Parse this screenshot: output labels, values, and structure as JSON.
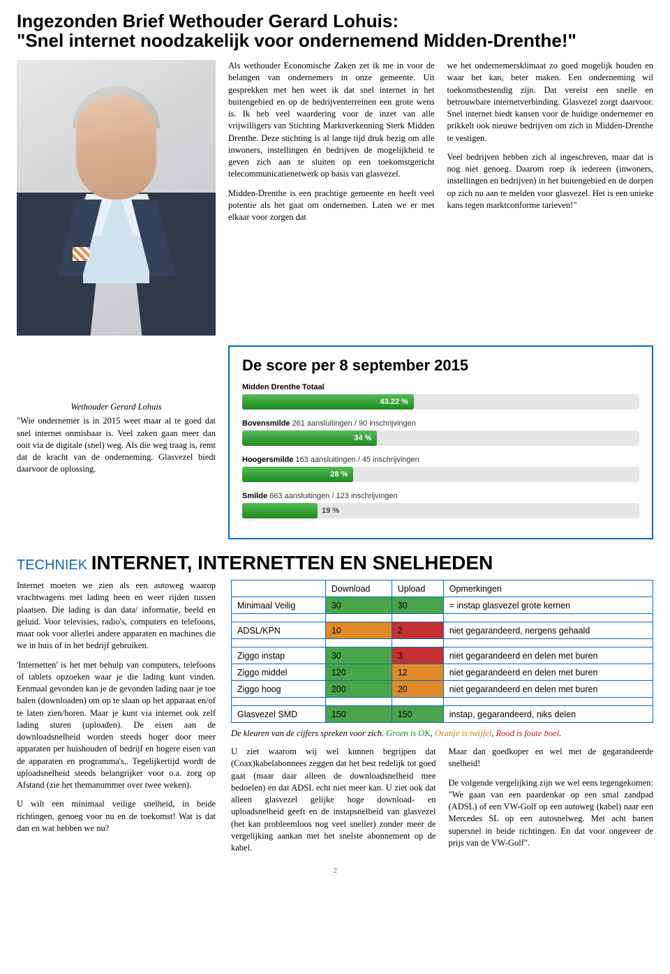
{
  "title": {
    "line1": "Ingezonden Brief Wethouder Gerard Lohuis:",
    "line2": "\"Snel internet noodzakelijk voor ondernemend Midden-Drenthe!\""
  },
  "article": {
    "col1": [
      "Als wethouder Economische Zaken zet ik me in voor de belangen van ondernemers in onze gemeente. Uit gesprekken met hen weet ik dat snel internet in het buitengebied en op de bedrijventerreinen een grote wens is. Ik heb veel waardering voor de inzet van alle vrijwilligers van Stichting Marktverkenning Sterk Midden Drenthe. Deze stichting is al lange tijd druk bezig om alle inwoners, instellingen én bedrijven de mogelijkheid te geven zich aan te sluiten op een toekomstgericht telecommunicatienetwerk op basis van glasvezel.",
      "Midden-Drenthe is een prachtige gemeente en heeft veel potentie als het gaat om ondernemen. Laten we er met elkaar voor zorgen dat"
    ],
    "col2": [
      "we het ondernemersklimaat zo goed mogelijk houden en waar het kan, beter maken. Een onderneming wil toekomstbestendig zijn. Dat vereist een snelle en betrouwbare internetverbinding. Glasvezel zorgt daarvoor. Snel internet biedt kansen voor de huidige ondernemer en prikkelt ook nieuwe bedrijven om zich in Midden-Drenthe te vestigen.",
      "Veel bedrijven hebben zich al ingeschreven, maar dat is nog niet genoeg. Daarom roep ik iedereen (inwoners, instellingen en bedrijven) in het buitengebied en de dorpen op zich nu aan te melden voor glasvezel. Het is een unieke kans tegen marktconforme tarieven!\""
    ]
  },
  "caption": {
    "name": "Wethouder Gerard Lohuis",
    "text": "\"Wie ondernemer is in 2015 weet maar al te goed dat snel internet onmisbaar is. Veel zaken gaan meer dan ooit via de digitale (snel) weg. Als die weg traag is, remt dat de kracht van de onderneming. Glasvezel biedt daarvoor de oplossing."
  },
  "score": {
    "title": "De score per 8 september 2015",
    "bar_bg": "#e6e6e6",
    "bars": [
      {
        "label_b": "Midden Drenthe Totaal",
        "label_after": "",
        "pct": 43.22,
        "color1": "#1d8a1f",
        "color2": "#55bb57"
      },
      {
        "label_b": "Bovensmilde",
        "label_after": " 261 aansluitingen / 90 inschrijvingen",
        "pct": 34,
        "color1": "#1d8a1f",
        "color2": "#55bb57"
      },
      {
        "label_b": "Hoogersmilde",
        "label_after": " 163 aansluitingen / 45 inschrijvingen",
        "pct": 28,
        "color1": "#1d8a1f",
        "color2": "#55bb57"
      },
      {
        "label_b": "Smilde",
        "label_after": " 663 aansluitingen / 123 inschrijvingen",
        "pct": 19,
        "color1": "#1d8a1f",
        "color2": "#55bb57"
      }
    ]
  },
  "section2": {
    "title_prefix": "TECHNIEK ",
    "title_main": "INTERNET, INTERNETTEN EN SNELHEDEN",
    "left_paras": [
      "Internet moeten we zien als een autoweg waarop vrachtwagens met lading heen en weer rijden tussen plaatsen. Die lading is dan data/ informatie, beeld en geluid. Voor televisies, radio's, computers en telefoons, maar ook voor allerlei andere apparaten en machines die we in huis of in het bedrijf gebruiken.",
      "'Internetten' is het met behulp van computers, telefoons of tablets opzoeken waar je die lading kunt vinden. Eenmaal gevonden kan je de gevonden lading naar je toe halen (downloaden) om op te slaan op het apparaat en/of te laten zien/horen. Maar je kunt via internet ook zelf lading sturen (uploaden). De eisen aan de downloadsnelheid worden steeds hoger door meer apparaten per huishouden of bedrijf en hogere eisen van de apparaten en programma's,. Tegelijkertijd wordt de uploadsnelheid steeds belangrijker voor o.a. zorg op Afstand (zie het themanummer over twee weken).",
      "U wilt een minimaal veilige snelheid, in beide richtingen, genoeg voor nu en de toekomst! Wat is dat dan en wat hebben we nu?"
    ],
    "table": {
      "headers": [
        "",
        "Download",
        "Upload",
        "Opmerkingen"
      ],
      "colors": {
        "green": "#4aa54a",
        "orange": "#e08a2a",
        "red": "#c73030"
      },
      "rows": [
        {
          "label": "Minimaal Veilig",
          "dl": "30",
          "dl_c": "green",
          "ul": "30",
          "ul_c": "green",
          "op": "= instap glasvezel grote kernen"
        },
        {
          "spacer": true
        },
        {
          "label": "ADSL/KPN",
          "dl": "10",
          "dl_c": "orange",
          "ul": "2",
          "ul_c": "red",
          "op": "niet gegarandeerd, nergens gehaald"
        },
        {
          "spacer": true
        },
        {
          "label": "Ziggo instap",
          "dl": "30",
          "dl_c": "green",
          "ul": "3",
          "ul_c": "red",
          "op": "niet gegarandeerd en delen met buren"
        },
        {
          "label": "Ziggo middel",
          "dl": "120",
          "dl_c": "green",
          "ul": "12",
          "ul_c": "orange",
          "op": "niet gegarandeerd en delen met buren"
        },
        {
          "label": "Ziggo hoog",
          "dl": "200",
          "dl_c": "green",
          "ul": "20",
          "ul_c": "orange",
          "op": "niet gegarandeerd en delen met buren"
        },
        {
          "spacer": true
        },
        {
          "label": "Glasvezel SMD",
          "dl": "150",
          "dl_c": "green",
          "ul": "150",
          "ul_c": "green",
          "op": "instap, gegarandeerd, niks delen"
        }
      ]
    },
    "legend": {
      "pre": "De kleuren van de cijfers spreken voor zich. ",
      "g": "Groen is OK",
      "sep1": ", ",
      "o": "Oranje is twijfel",
      "sep2": ", ",
      "r": "Rood is foute boel",
      "post": "."
    },
    "bottom_cols": {
      "c1": [
        "U ziet waarom wij wel kunnen begrijpen dat (Coax)kabelabonnees zeggen dat het best redelijk tot goed gaat (maar daar alleen de downloadsnelheid mee bedoelen) en dat ADSL echt niet meer kan. U ziet ook dat alleen glasvezel gelijke hoge download- en uploadsnelheid geeft en de instapsnelheid van glasvezel (het kan probleemloos nog veel sneller) zonder meer de vergelijking aankan met het snelste abonnement op de kabel."
      ],
      "c2": [
        "Maar dan goedkoper en wel met de gegarandeerde snelheid!",
        "De volgende vergelijking zijn we wel eens tegengekomen: \"We gaan van een paardenkar op een smal zandpad (ADSL) of een VW-Golf op een autoweg (kabel) naar een Mercedes SL op een autosnelweg. Met acht banen supersnel in beide richtingen. En dat voor ongeveer de prijs van de VW-Golf\"."
      ]
    }
  },
  "page_num": "2"
}
